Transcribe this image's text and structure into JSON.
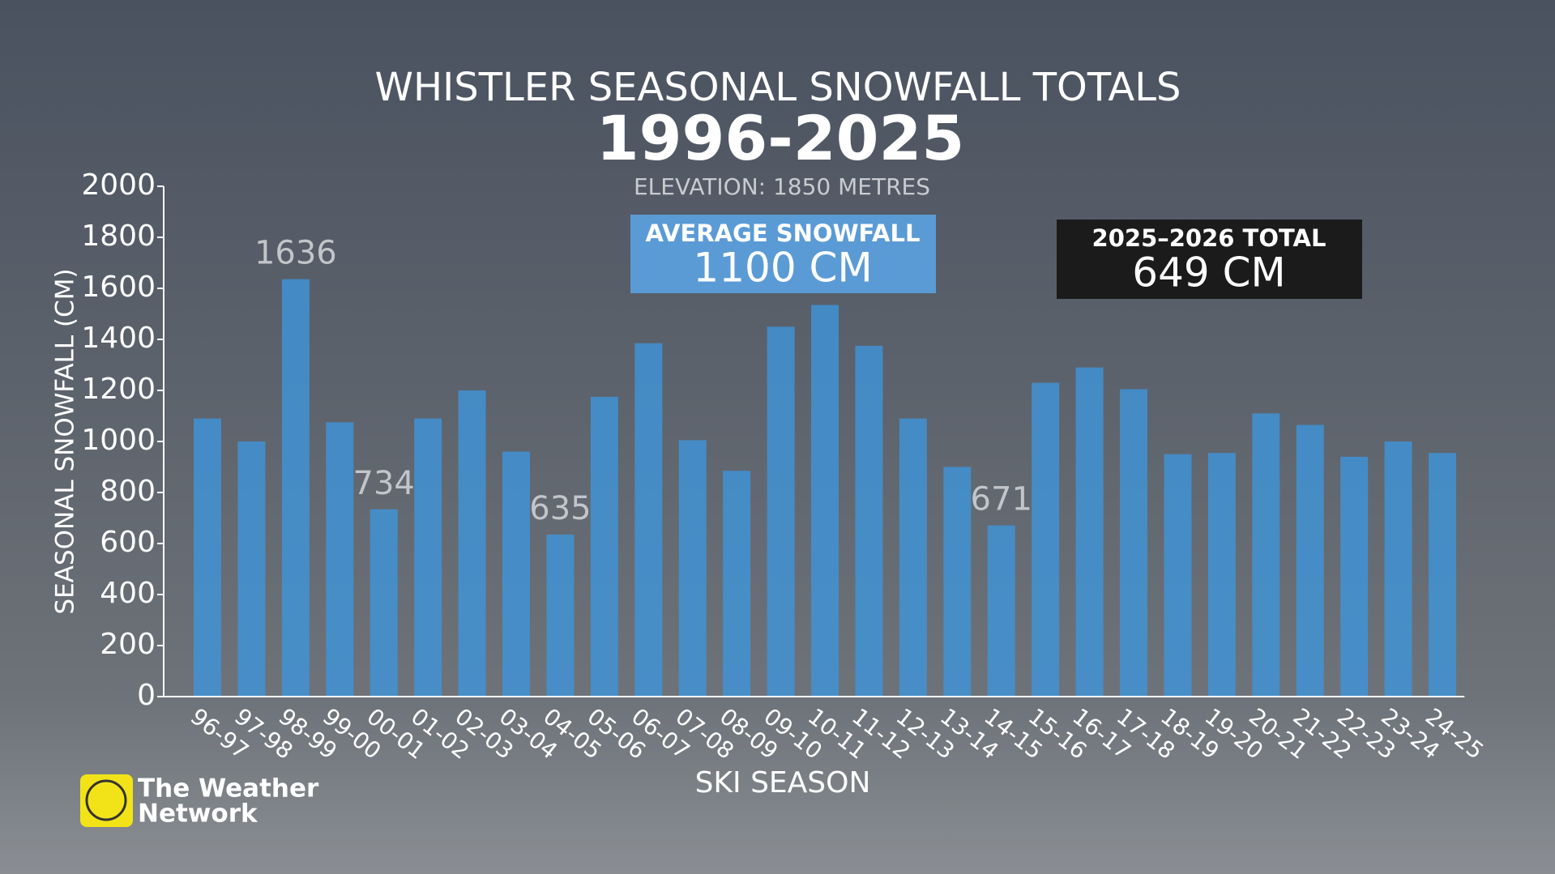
{
  "chart_data": {
    "type": "bar",
    "title": "WHISTLER SEASONAL SNOWFALL TOTALS",
    "subtitle": "1996-2025",
    "note": "ELEVATION: 1850 METRES",
    "annotations": [
      {
        "title": "AVERAGE SNOWFALL",
        "text": "1100 CM"
      },
      {
        "title": "2025–2026 TOTAL",
        "text": "649 CM"
      }
    ],
    "x_label": "SKI SEASON",
    "y_label": "SEASONAL SNOWFALL (CM)",
    "source": [
      "The Weather",
      "Network"
    ],
    "categories": [
      "96-97",
      "97-98",
      "98-99",
      "99-00",
      "00-01",
      "01-02",
      "02-03",
      "03-04",
      "04-05",
      "05-06",
      "06-07",
      "07-08",
      "08-09",
      "09-10",
      "10-11",
      "11-12",
      "12-13",
      "13-14",
      "14-15",
      "15-16",
      "16-17",
      "17-18",
      "18-19",
      "19-20",
      "20-21",
      "21-22",
      "22-23",
      "23-24",
      "24-25"
    ],
    "values": [
      1090,
      1000,
      1636,
      1075,
      734,
      1090,
      1200,
      960,
      635,
      1175,
      1385,
      1005,
      885,
      1450,
      1535,
      1375,
      1090,
      900,
      671,
      1230,
      1290,
      1205,
      950,
      955,
      1110,
      1065,
      940,
      1000,
      955
    ],
    "value_labels": [
      null,
      null,
      "1636",
      null,
      "734",
      null,
      null,
      null,
      "635",
      null,
      null,
      null,
      null,
      null,
      null,
      null,
      null,
      null,
      "671",
      null,
      null,
      null,
      null,
      null,
      null,
      null,
      null,
      null,
      null
    ],
    "color": "#3f94d8",
    "ylim": [
      0,
      2000
    ],
    "yticks": [
      0,
      200,
      400,
      600,
      800,
      1000,
      1200,
      1400,
      1600,
      1800,
      2000
    ]
  }
}
